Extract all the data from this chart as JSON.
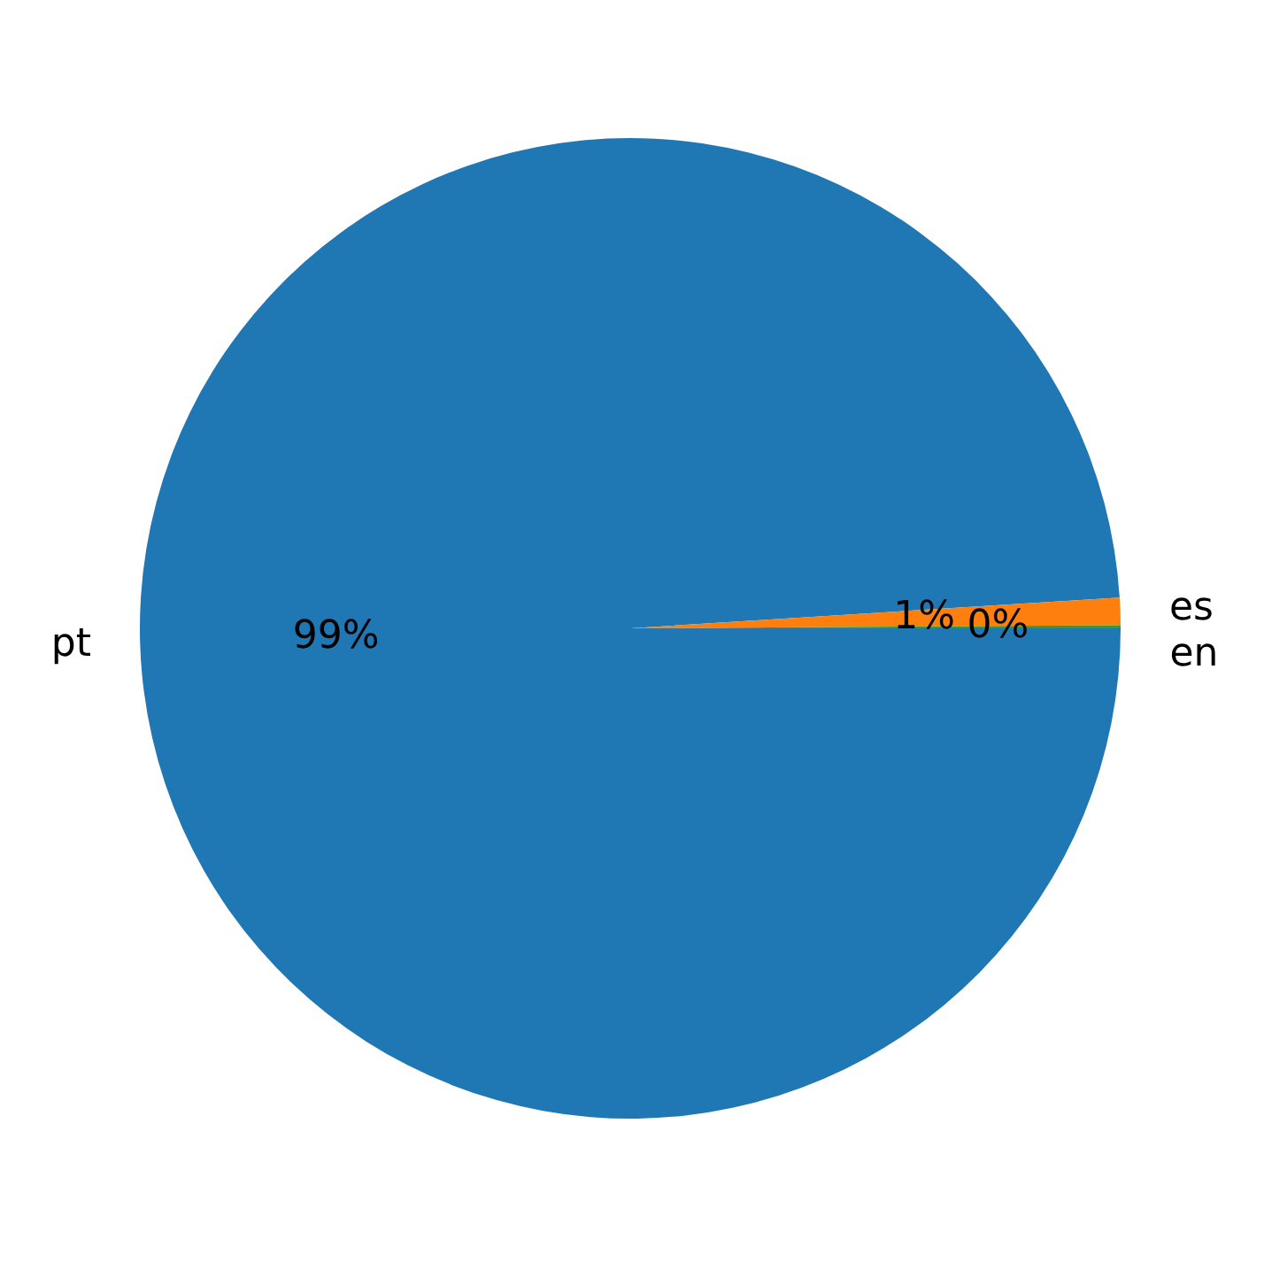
{
  "chart_data": {
    "type": "pie",
    "categories": [
      "pt",
      "es",
      "en"
    ],
    "values": [
      99.0,
      0.9,
      0.1
    ],
    "colors": [
      "#1f77b4",
      "#ff7f0e",
      "#2ca02c"
    ],
    "value_labels": [
      "99%",
      "1%",
      "0%"
    ]
  }
}
